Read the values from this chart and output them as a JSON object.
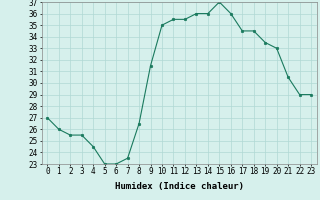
{
  "x": [
    0,
    1,
    2,
    3,
    4,
    5,
    6,
    7,
    8,
    9,
    10,
    11,
    12,
    13,
    14,
    15,
    16,
    17,
    18,
    19,
    20,
    21,
    22,
    23
  ],
  "y": [
    27.0,
    26.0,
    25.5,
    25.5,
    24.5,
    23.0,
    23.0,
    23.5,
    26.5,
    31.5,
    35.0,
    35.5,
    35.5,
    36.0,
    36.0,
    37.0,
    36.0,
    34.5,
    34.5,
    33.5,
    33.0,
    30.5,
    29.0,
    29.0
  ],
  "line_color": "#1a7a5e",
  "marker_color": "#1a7a5e",
  "bg_color": "#d6f0ec",
  "grid_color": "#b0d8d4",
  "xlabel": "Humidex (Indice chaleur)",
  "ylim": [
    23,
    37
  ],
  "xlim": [
    -0.5,
    23.5
  ],
  "yticks": [
    23,
    24,
    25,
    26,
    27,
    28,
    29,
    30,
    31,
    32,
    33,
    34,
    35,
    36,
    37
  ],
  "xticks": [
    0,
    1,
    2,
    3,
    4,
    5,
    6,
    7,
    8,
    9,
    10,
    11,
    12,
    13,
    14,
    15,
    16,
    17,
    18,
    19,
    20,
    21,
    22,
    23
  ],
  "font_size_label": 6.5,
  "font_size_tick": 5.5
}
